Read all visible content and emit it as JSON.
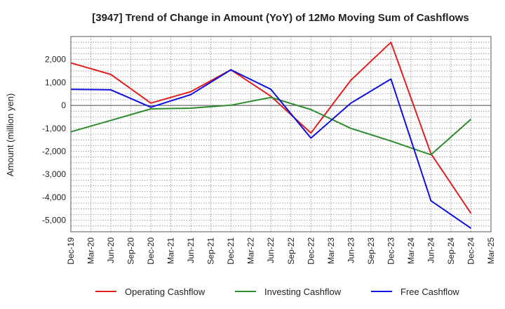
{
  "chart_data": {
    "type": "line",
    "title": "[3947]  Trend of Change in Amount (YoY) of 12Mo Moving Sum of Cashflows",
    "xlabel": "",
    "ylabel": "Amount (million yen)",
    "categories": [
      "Dec-19",
      "Mar-20",
      "Jun-20",
      "Sep-20",
      "Dec-20",
      "Mar-21",
      "Jun-21",
      "Sep-21",
      "Dec-21",
      "Mar-22",
      "Jun-22",
      "Sep-22",
      "Dec-22",
      "Mar-23",
      "Jun-23",
      "Sep-23",
      "Dec-23",
      "Mar-24",
      "Jun-24",
      "Sep-24",
      "Dec-24",
      "Mar-25"
    ],
    "ylim": [
      -5500,
      3000
    ],
    "yticks": [
      -5000,
      -4000,
      -3000,
      -2000,
      -1000,
      0,
      1000,
      2000
    ],
    "ytick_labels": [
      "-5,000",
      "-4,000",
      "-3,000",
      "-2,000",
      "-1,000",
      "0",
      "1,000",
      "2,000"
    ],
    "series": [
      {
        "name": "Operating Cashflow",
        "color": "#e02020",
        "points": [
          [
            0,
            1850
          ],
          [
            2,
            1350
          ],
          [
            4,
            100
          ],
          [
            6,
            600
          ],
          [
            8,
            1550
          ],
          [
            10,
            400
          ],
          [
            12,
            -1200
          ],
          [
            14,
            1100
          ],
          [
            16,
            2750
          ],
          [
            18,
            -2100
          ],
          [
            20,
            -4700
          ]
        ]
      },
      {
        "name": "Investing Cashflow",
        "color": "#2e8b2e",
        "points": [
          [
            0,
            -1150
          ],
          [
            2,
            -650
          ],
          [
            4,
            -150
          ],
          [
            6,
            -120
          ],
          [
            8,
            10
          ],
          [
            10,
            350
          ],
          [
            12,
            -180
          ],
          [
            14,
            -1000
          ],
          [
            16,
            -1550
          ],
          [
            18,
            -2150
          ],
          [
            20,
            -600
          ]
        ]
      },
      {
        "name": "Free Cashflow",
        "color": "#1010dd",
        "points": [
          [
            0,
            700
          ],
          [
            2,
            680
          ],
          [
            4,
            -80
          ],
          [
            6,
            470
          ],
          [
            8,
            1550
          ],
          [
            10,
            700
          ],
          [
            12,
            -1420
          ],
          [
            14,
            100
          ],
          [
            16,
            1150
          ],
          [
            18,
            -4150
          ],
          [
            20,
            -5350
          ]
        ]
      }
    ],
    "legend_position": "bottom",
    "grid": true
  }
}
